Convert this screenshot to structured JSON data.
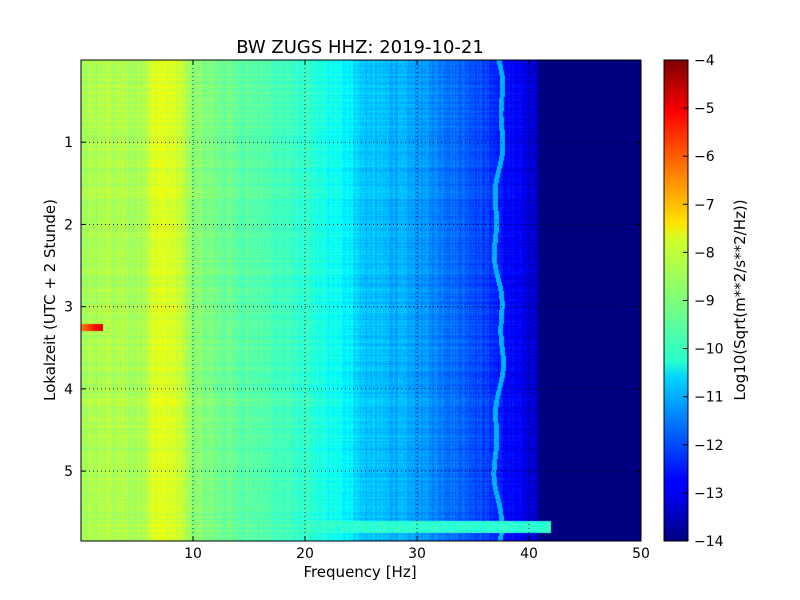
{
  "chart_data": {
    "type": "heatmap",
    "title": "BW ZUGS HHZ: 2019-10-21",
    "xlabel": "Frequency [Hz]",
    "ylabel": "Lokalzeit (UTC + 2 Stunde)",
    "xlim": [
      0,
      50
    ],
    "ylim": [
      5.85,
      0
    ],
    "x_ticks": [
      10,
      20,
      30,
      40,
      50
    ],
    "x_tick_labels": [
      "10",
      "20",
      "30",
      "40",
      "50"
    ],
    "y_ticks": [
      1,
      2,
      3,
      4,
      5
    ],
    "y_tick_labels": [
      "1",
      "2",
      "3",
      "4",
      "5"
    ],
    "grid": true,
    "colormap": "jet",
    "colorbar": {
      "label": "Log10(Sqrt(m**2/s**2/Hz))",
      "range": [
        -14,
        -4
      ],
      "ticks": [
        -4,
        -5,
        -6,
        -7,
        -8,
        -9,
        -10,
        -11,
        -12,
        -13,
        -14
      ],
      "tick_labels": [
        "−4",
        "−5",
        "−6",
        "−7",
        "−8",
        "−9",
        "−10",
        "−11",
        "−12",
        "−13",
        "−14"
      ]
    },
    "frequency_profile": {
      "x": [
        0,
        2,
        5,
        7,
        9,
        10,
        13,
        17,
        20,
        22,
        24,
        25,
        28,
        30,
        33,
        35,
        36.5,
        37.5,
        39,
        40.5,
        41,
        50
      ],
      "values": [
        -8.7,
        -8.5,
        -8.6,
        -8.0,
        -8.3,
        -8.9,
        -9.2,
        -9.5,
        -9.8,
        -10.1,
        -10.3,
        -10.8,
        -11.0,
        -11.2,
        -11.6,
        -11.9,
        -12.2,
        -12.6,
        -12.9,
        -13.1,
        -14.0,
        -14.0
      ]
    },
    "features": [
      {
        "name": "spectral line",
        "x": 37.3,
        "value": -11.0
      },
      {
        "name": "transient",
        "y": 3.25,
        "x_range": [
          0,
          2
        ],
        "value": -6.5
      },
      {
        "name": "broadband event",
        "y": 5.68,
        "x_range": [
          20,
          42
        ],
        "value": -9.8
      }
    ]
  }
}
